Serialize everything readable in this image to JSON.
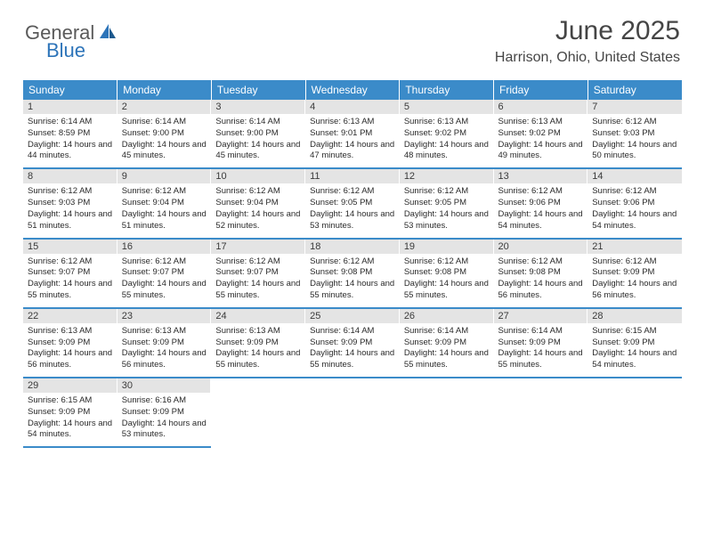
{
  "logo": {
    "part1": "General",
    "part2": "Blue"
  },
  "title": "June 2025",
  "location": "Harrison, Ohio, United States",
  "dows": [
    "Sunday",
    "Monday",
    "Tuesday",
    "Wednesday",
    "Thursday",
    "Friday",
    "Saturday"
  ],
  "colors": {
    "header_bg": "#3b8bc9",
    "daynum_bg": "#e4e4e4",
    "text": "#2a2a2a",
    "logo_blue": "#2d74b9",
    "logo_gray": "#5a5a5a"
  },
  "weeks": [
    [
      {
        "n": "1",
        "sr": "6:14 AM",
        "ss": "8:59 PM",
        "dl": "14 hours and 44 minutes."
      },
      {
        "n": "2",
        "sr": "6:14 AM",
        "ss": "9:00 PM",
        "dl": "14 hours and 45 minutes."
      },
      {
        "n": "3",
        "sr": "6:14 AM",
        "ss": "9:00 PM",
        "dl": "14 hours and 45 minutes."
      },
      {
        "n": "4",
        "sr": "6:13 AM",
        "ss": "9:01 PM",
        "dl": "14 hours and 47 minutes."
      },
      {
        "n": "5",
        "sr": "6:13 AM",
        "ss": "9:02 PM",
        "dl": "14 hours and 48 minutes."
      },
      {
        "n": "6",
        "sr": "6:13 AM",
        "ss": "9:02 PM",
        "dl": "14 hours and 49 minutes."
      },
      {
        "n": "7",
        "sr": "6:12 AM",
        "ss": "9:03 PM",
        "dl": "14 hours and 50 minutes."
      }
    ],
    [
      {
        "n": "8",
        "sr": "6:12 AM",
        "ss": "9:03 PM",
        "dl": "14 hours and 51 minutes."
      },
      {
        "n": "9",
        "sr": "6:12 AM",
        "ss": "9:04 PM",
        "dl": "14 hours and 51 minutes."
      },
      {
        "n": "10",
        "sr": "6:12 AM",
        "ss": "9:04 PM",
        "dl": "14 hours and 52 minutes."
      },
      {
        "n": "11",
        "sr": "6:12 AM",
        "ss": "9:05 PM",
        "dl": "14 hours and 53 minutes."
      },
      {
        "n": "12",
        "sr": "6:12 AM",
        "ss": "9:05 PM",
        "dl": "14 hours and 53 minutes."
      },
      {
        "n": "13",
        "sr": "6:12 AM",
        "ss": "9:06 PM",
        "dl": "14 hours and 54 minutes."
      },
      {
        "n": "14",
        "sr": "6:12 AM",
        "ss": "9:06 PM",
        "dl": "14 hours and 54 minutes."
      }
    ],
    [
      {
        "n": "15",
        "sr": "6:12 AM",
        "ss": "9:07 PM",
        "dl": "14 hours and 55 minutes."
      },
      {
        "n": "16",
        "sr": "6:12 AM",
        "ss": "9:07 PM",
        "dl": "14 hours and 55 minutes."
      },
      {
        "n": "17",
        "sr": "6:12 AM",
        "ss": "9:07 PM",
        "dl": "14 hours and 55 minutes."
      },
      {
        "n": "18",
        "sr": "6:12 AM",
        "ss": "9:08 PM",
        "dl": "14 hours and 55 minutes."
      },
      {
        "n": "19",
        "sr": "6:12 AM",
        "ss": "9:08 PM",
        "dl": "14 hours and 55 minutes."
      },
      {
        "n": "20",
        "sr": "6:12 AM",
        "ss": "9:08 PM",
        "dl": "14 hours and 56 minutes."
      },
      {
        "n": "21",
        "sr": "6:12 AM",
        "ss": "9:09 PM",
        "dl": "14 hours and 56 minutes."
      }
    ],
    [
      {
        "n": "22",
        "sr": "6:13 AM",
        "ss": "9:09 PM",
        "dl": "14 hours and 56 minutes."
      },
      {
        "n": "23",
        "sr": "6:13 AM",
        "ss": "9:09 PM",
        "dl": "14 hours and 56 minutes."
      },
      {
        "n": "24",
        "sr": "6:13 AM",
        "ss": "9:09 PM",
        "dl": "14 hours and 55 minutes."
      },
      {
        "n": "25",
        "sr": "6:14 AM",
        "ss": "9:09 PM",
        "dl": "14 hours and 55 minutes."
      },
      {
        "n": "26",
        "sr": "6:14 AM",
        "ss": "9:09 PM",
        "dl": "14 hours and 55 minutes."
      },
      {
        "n": "27",
        "sr": "6:14 AM",
        "ss": "9:09 PM",
        "dl": "14 hours and 55 minutes."
      },
      {
        "n": "28",
        "sr": "6:15 AM",
        "ss": "9:09 PM",
        "dl": "14 hours and 54 minutes."
      }
    ],
    [
      {
        "n": "29",
        "sr": "6:15 AM",
        "ss": "9:09 PM",
        "dl": "14 hours and 54 minutes."
      },
      {
        "n": "30",
        "sr": "6:16 AM",
        "ss": "9:09 PM",
        "dl": "14 hours and 53 minutes."
      },
      null,
      null,
      null,
      null,
      null
    ]
  ],
  "labels": {
    "sunrise": "Sunrise:",
    "sunset": "Sunset:",
    "daylight": "Daylight:"
  }
}
